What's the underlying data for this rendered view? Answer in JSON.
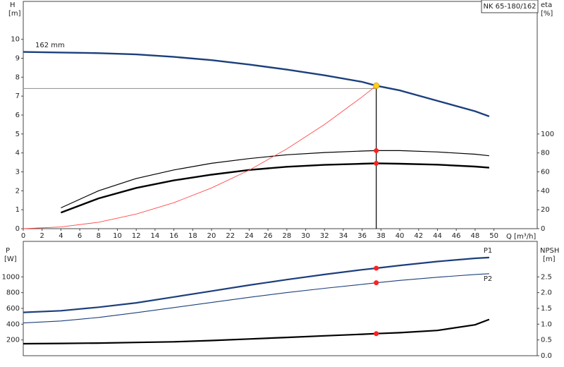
{
  "chart_data": [
    {
      "type": "line",
      "title": "NK 65-180/162",
      "annotation": "162 mm",
      "ylabel": "H",
      "yunit": "[m]",
      "y2label": "eta",
      "y2unit": "[%]",
      "xlabel": "Q [m³/h]",
      "x": [
        0,
        4,
        8,
        12,
        16,
        20,
        24,
        28,
        32,
        36,
        37.5,
        40,
        44,
        48,
        49.5
      ],
      "xlim": [
        0,
        54.6
      ],
      "ylim": [
        0,
        12
      ],
      "y2lim": [
        0,
        240
      ],
      "xticks": [
        0,
        2,
        4,
        6,
        8,
        10,
        12,
        14,
        16,
        18,
        20,
        22,
        24,
        26,
        28,
        30,
        32,
        34,
        36,
        38,
        40,
        42,
        44,
        46,
        48,
        50
      ],
      "yticks": [
        0,
        1,
        2,
        3,
        4,
        5,
        6,
        7,
        8,
        9,
        10
      ],
      "y2ticks": [
        0,
        20,
        40,
        60,
        80,
        100
      ],
      "operating_x": 37.5,
      "operating_h": 7.4,
      "grid": false,
      "series": [
        {
          "color": "#1c3f7c",
          "line_width": 2.4,
          "marker": "#ffd21a",
          "values": [
            9.33,
            9.3,
            9.27,
            9.2,
            9.07,
            8.9,
            8.67,
            8.4,
            8.1,
            7.75,
            7.55,
            7.3,
            6.75,
            6.2,
            5.93
          ]
        },
        {
          "color": "#000000",
          "line_width": 1.2,
          "axis": "y2",
          "marker": "#ff2020",
          "values": [
            null,
            22,
            40,
            53,
            62,
            69,
            74,
            78,
            80.4,
            82,
            82.4,
            82.4,
            81,
            78.6,
            77
          ]
        },
        {
          "color": "#000000",
          "line_width": 2.4,
          "axis": "y2",
          "marker": "#ff2020",
          "values": [
            null,
            17,
            32,
            43,
            51,
            57,
            62,
            65.4,
            67.4,
            68.6,
            69,
            68.6,
            67.6,
            65.6,
            64.4
          ]
        },
        {
          "color": "#ff4a4a",
          "line_width": 0.9,
          "values": [
            0,
            0.09,
            0.34,
            0.77,
            1.37,
            2.15,
            3.09,
            4.21,
            5.5,
            6.96,
            7.55,
            null,
            null,
            null,
            null
          ]
        }
      ]
    },
    {
      "type": "line",
      "ylabel": "P",
      "yunit": "[W]",
      "y2label": "NPSH",
      "y2unit": "[m]",
      "x": [
        0,
        4,
        8,
        12,
        16,
        20,
        24,
        28,
        32,
        36,
        37.5,
        40,
        44,
        48,
        49.5
      ],
      "xlim": [
        0,
        54.6
      ],
      "ylim": [
        0,
        1450
      ],
      "y2lim": [
        0,
        3.625
      ],
      "yticks": [
        200,
        400,
        600,
        800,
        1000
      ],
      "y2ticks": [
        {
          "value": 0,
          "label": "0.0"
        },
        0.5,
        {
          "value": 1,
          "label": "1.0"
        },
        1.5,
        {
          "value": 2,
          "label": "2.0"
        },
        2.5
      ],
      "series": [
        {
          "name": "P1",
          "color": "#1c3f7c",
          "line_width": 2.2,
          "marker": "#ff2020",
          "values": [
            550,
            570,
            615,
            670,
            745,
            820,
            895,
            965,
            1030,
            1090,
            1110,
            1145,
            1195,
            1235,
            1245
          ]
        },
        {
          "name": "P2",
          "color": "#1c3f7c",
          "line_width": 1.1,
          "marker": "#ff2020",
          "values": [
            415,
            440,
            485,
            545,
            610,
            675,
            740,
            800,
            855,
            905,
            925,
            955,
            995,
            1030,
            1040
          ]
        },
        {
          "color": "#000000",
          "line_width": 2.2,
          "axis": "y2",
          "marker": "#ff2020",
          "values": [
            0.38,
            0.39,
            0.4,
            0.42,
            0.44,
            0.48,
            0.53,
            0.58,
            0.63,
            0.68,
            0.7,
            0.73,
            0.8,
            0.98,
            1.15
          ]
        }
      ]
    }
  ]
}
